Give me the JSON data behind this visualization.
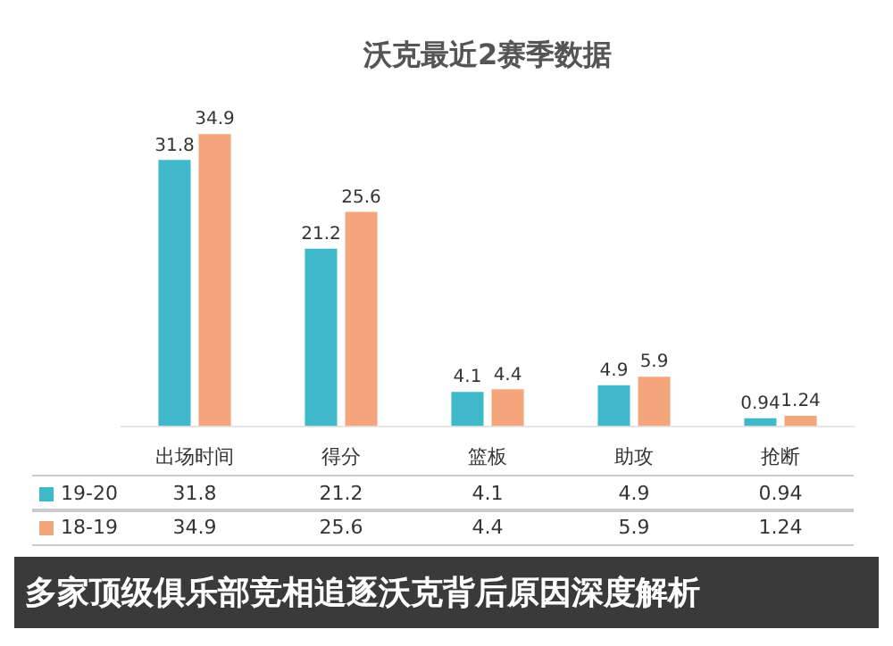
{
  "chart_data": [
    {
      "type": "bar",
      "title": "沃克最近2赛季数据",
      "categories": [
        "出场时间",
        "得分",
        "篮板",
        "助攻",
        "抢断"
      ],
      "series": [
        {
          "name": "19-20",
          "color": "#3fb8c9",
          "values": [
            31.8,
            21.2,
            4.1,
            4.9,
            0.94
          ]
        },
        {
          "name": "18-19",
          "color": "#f4a57b",
          "values": [
            34.9,
            25.6,
            4.4,
            5.9,
            1.24
          ]
        }
      ],
      "data_labels": true,
      "grid": false,
      "annotations": [
        "多家顶级俱乐部竞相追逐沃克背后原因深度解析"
      ]
    },
    {
      "type": "other",
      "cells": [
        [
          "31.8",
          "21.2",
          "4.1",
          "4.9",
          "0.94"
        ],
        [
          "34.9",
          "25.6",
          "4.4",
          "5.9",
          "1.24"
        ]
      ]
    }
  ]
}
